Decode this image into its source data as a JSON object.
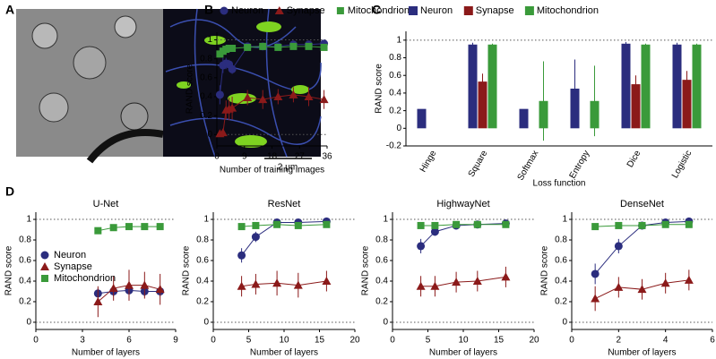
{
  "image_panel": {
    "panel": "A",
    "scale_bar": "2 μm"
  },
  "chart_data": [
    {
      "type": "line",
      "panel": "B",
      "xlabel": "Number of training images",
      "ylabel": "RAND score",
      "xlim": [
        0,
        36
      ],
      "xticks": [
        0,
        9,
        18,
        27,
        36
      ],
      "ylim": [
        -0.12,
        1.08
      ],
      "yticks": [
        0,
        0.2,
        0.4,
        0.6,
        0.8,
        1
      ],
      "ref_lines": [
        0,
        1
      ],
      "legend": "top",
      "x": [
        1,
        2,
        3,
        4,
        5,
        10,
        15,
        20,
        25,
        30,
        35
      ],
      "series": [
        {
          "name": "Neuron",
          "color": "#2b2d7e",
          "marker": "circle",
          "values": [
            0.42,
            0.73,
            0.75,
            0.74,
            0.69,
            0.93,
            0.93,
            0.93,
            0.95,
            0.95,
            0.96
          ],
          "errors": [
            0.1,
            0.08,
            0.06,
            0.05,
            0.05,
            0.02,
            0.02,
            0.02,
            0.02,
            0.02,
            0.02
          ]
        },
        {
          "name": "Synapse",
          "color": "#8b1a1a",
          "marker": "triangle",
          "values": [
            0.01,
            0.02,
            0.26,
            0.27,
            0.28,
            0.39,
            0.37,
            0.4,
            0.42,
            0.4,
            0.37
          ],
          "errors": [
            0.02,
            0.03,
            0.1,
            0.12,
            0.12,
            0.08,
            0.1,
            0.08,
            0.08,
            0.1,
            0.1
          ]
        },
        {
          "name": "Mitochondrion",
          "color": "#3a9a3a",
          "marker": "square",
          "values": [
            0.85,
            0.88,
            0.9,
            0.91,
            0.91,
            0.92,
            0.93,
            0.92,
            0.93,
            0.93,
            0.92
          ],
          "errors": [
            0.02,
            0.02,
            0.02,
            0.02,
            0.02,
            0.02,
            0.02,
            0.02,
            0.02,
            0.02,
            0.02
          ]
        }
      ]
    },
    {
      "type": "bar",
      "panel": "C",
      "xlabel": "Loss function",
      "ylabel": "RAND score",
      "ylim": [
        -0.2,
        1.1
      ],
      "yticks": [
        -0.2,
        0,
        0.2,
        0.4,
        0.6,
        0.8,
        1
      ],
      "ref_lines": [
        1
      ],
      "legend": "top",
      "categories": [
        "Hinge",
        "Square",
        "Softmax",
        "Entropy",
        "Dice",
        "Logistic"
      ],
      "series": [
        {
          "name": "Neuron",
          "color": "#2b2d7e",
          "values": [
            0.22,
            0.95,
            0.22,
            0.45,
            0.96,
            0.95
          ],
          "errors": [
            0,
            0.02,
            0,
            0.33,
            0.02,
            0.02
          ]
        },
        {
          "name": "Synapse",
          "color": "#8b1a1a",
          "values": [
            0,
            0.53,
            0,
            0,
            0.5,
            0.55
          ],
          "errors": [
            0,
            0.09,
            0,
            0,
            0.1,
            0.1
          ]
        },
        {
          "name": "Mitochondrion",
          "color": "#3a9a3a",
          "values": [
            0,
            0.95,
            0.31,
            0.31,
            0.95,
            0.95
          ],
          "errors": [
            0,
            0.01,
            0.45,
            0.4,
            0.01,
            0.01
          ]
        }
      ]
    },
    {
      "type": "line",
      "panel": "D",
      "title": "U-Net",
      "xlabel": "Number of layers",
      "ylabel": "RAND score",
      "xlim": [
        0,
        9
      ],
      "xticks": [
        0,
        3,
        6,
        9
      ],
      "ylim": [
        -0.07,
        1.07
      ],
      "yticks": [
        0,
        0.2,
        0.4,
        0.6,
        0.8,
        1
      ],
      "ref_lines": [
        0,
        1
      ],
      "legend": "inside",
      "x": [
        4,
        5,
        6,
        7,
        8
      ],
      "series": [
        {
          "name": "Neuron",
          "color": "#2b2d7e",
          "marker": "circle",
          "values": [
            0.28,
            0.3,
            0.31,
            0.3,
            0.3
          ],
          "errors": [
            0.05,
            0.05,
            0.05,
            0.05,
            0.05
          ]
        },
        {
          "name": "Synapse",
          "color": "#8b1a1a",
          "marker": "triangle",
          "values": [
            0.2,
            0.33,
            0.36,
            0.36,
            0.32
          ],
          "errors": [
            0.15,
            0.12,
            0.15,
            0.13,
            0.15
          ]
        },
        {
          "name": "Mitochondrion",
          "color": "#3a9a3a",
          "marker": "square",
          "values": [
            0.89,
            0.92,
            0.93,
            0.93,
            0.93
          ],
          "errors": [
            0.01,
            0.01,
            0.01,
            0.01,
            0.01
          ]
        }
      ]
    },
    {
      "type": "line",
      "title": "ResNet",
      "xlabel": "Number of layers",
      "ylabel": "RAND score",
      "xlim": [
        0,
        20
      ],
      "xticks": [
        0,
        5,
        10,
        15,
        20
      ],
      "ylim": [
        -0.07,
        1.07
      ],
      "yticks": [
        0,
        0.2,
        0.4,
        0.6,
        0.8,
        1
      ],
      "ref_lines": [
        0,
        1
      ],
      "x": [
        4,
        6,
        9,
        12,
        16
      ],
      "series": [
        {
          "color": "#2b2d7e",
          "marker": "circle",
          "values": [
            0.65,
            0.83,
            0.97,
            0.97,
            0.98
          ],
          "errors": [
            0.07,
            0.05,
            0.02,
            0.02,
            0.01
          ]
        },
        {
          "color": "#8b1a1a",
          "marker": "triangle",
          "values": [
            0.35,
            0.37,
            0.38,
            0.36,
            0.4
          ],
          "errors": [
            0.1,
            0.1,
            0.12,
            0.12,
            0.1
          ]
        },
        {
          "color": "#3a9a3a",
          "marker": "square",
          "values": [
            0.93,
            0.94,
            0.95,
            0.94,
            0.95
          ],
          "errors": [
            0.01,
            0.01,
            0.01,
            0.01,
            0.01
          ]
        }
      ]
    },
    {
      "type": "line",
      "title": "HighwayNet",
      "xlabel": "Number of layers",
      "ylabel": "RAND score",
      "xlim": [
        0,
        20
      ],
      "xticks": [
        0,
        5,
        10,
        15,
        20
      ],
      "ylim": [
        -0.07,
        1.07
      ],
      "yticks": [
        0,
        0.2,
        0.4,
        0.6,
        0.8,
        1
      ],
      "ref_lines": [
        0,
        1
      ],
      "x": [
        4,
        6,
        9,
        12,
        16
      ],
      "series": [
        {
          "color": "#2b2d7e",
          "marker": "circle",
          "values": [
            0.74,
            0.88,
            0.94,
            0.95,
            0.96
          ],
          "errors": [
            0.07,
            0.04,
            0.02,
            0.02,
            0.01
          ]
        },
        {
          "color": "#8b1a1a",
          "marker": "triangle",
          "values": [
            0.35,
            0.35,
            0.39,
            0.4,
            0.44
          ],
          "errors": [
            0.1,
            0.1,
            0.1,
            0.1,
            0.1
          ]
        },
        {
          "color": "#3a9a3a",
          "marker": "square",
          "values": [
            0.94,
            0.94,
            0.95,
            0.95,
            0.95
          ],
          "errors": [
            0.01,
            0.01,
            0.01,
            0.01,
            0.01
          ]
        }
      ]
    },
    {
      "type": "line",
      "title": "DenseNet",
      "xlabel": "Number of layers",
      "ylabel": "RAND score",
      "xlim": [
        0,
        6
      ],
      "xticks": [
        0,
        2,
        4,
        6
      ],
      "ylim": [
        -0.07,
        1.07
      ],
      "yticks": [
        0,
        0.2,
        0.4,
        0.6,
        0.8,
        1
      ],
      "ref_lines": [
        0,
        1
      ],
      "x": [
        1,
        2,
        3,
        4,
        5
      ],
      "series": [
        {
          "color": "#2b2d7e",
          "marker": "circle",
          "values": [
            0.47,
            0.74,
            0.94,
            0.97,
            0.98
          ],
          "errors": [
            0.1,
            0.07,
            0.03,
            0.02,
            0.01
          ]
        },
        {
          "color": "#8b1a1a",
          "marker": "triangle",
          "values": [
            0.23,
            0.34,
            0.32,
            0.38,
            0.41
          ],
          "errors": [
            0.12,
            0.1,
            0.1,
            0.1,
            0.1
          ]
        },
        {
          "color": "#3a9a3a",
          "marker": "square",
          "values": [
            0.93,
            0.94,
            0.94,
            0.95,
            0.95
          ],
          "errors": [
            0.01,
            0.01,
            0.01,
            0.01,
            0.01
          ]
        }
      ]
    }
  ]
}
